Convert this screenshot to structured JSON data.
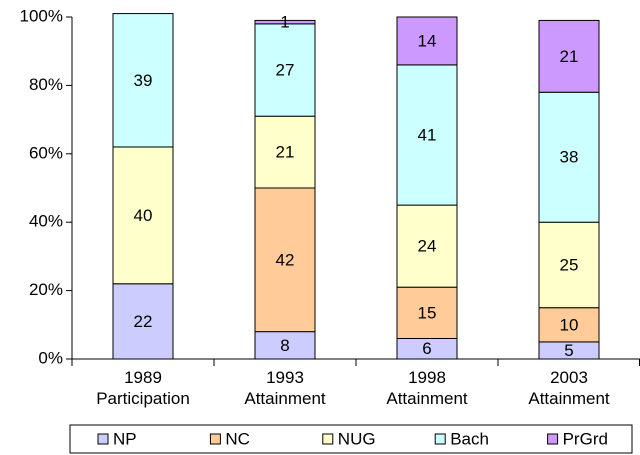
{
  "chart_data": {
    "type": "stacked_bar",
    "categories": [
      "1989 Participation",
      "1993 Attainment",
      "1998 Attainment",
      "2003 Attainment"
    ],
    "series": [
      {
        "name": "NP",
        "color": "#ccccff",
        "values": [
          22,
          8,
          6,
          5
        ]
      },
      {
        "name": "NC",
        "color": "#ffcc99",
        "values": [
          null,
          42,
          15,
          10
        ]
      },
      {
        "name": "NUG",
        "color": "#ffffcc",
        "values": [
          40,
          21,
          24,
          25
        ]
      },
      {
        "name": "Bach",
        "color": "#ccffff",
        "values": [
          39,
          27,
          41,
          38
        ]
      },
      {
        "name": "PrGrd",
        "color": "#cc99ff",
        "values": [
          null,
          1,
          14,
          21
        ]
      }
    ],
    "ylim": [
      0,
      100
    ],
    "yticks": [
      {
        "value": 0,
        "label": "0%"
      },
      {
        "value": 20,
        "label": "20%"
      },
      {
        "value": 40,
        "label": "40%"
      },
      {
        "value": 60,
        "label": "60%"
      },
      {
        "value": 80,
        "label": "80%"
      },
      {
        "value": 100,
        "label": "100%"
      }
    ],
    "legend": "bottom"
  }
}
